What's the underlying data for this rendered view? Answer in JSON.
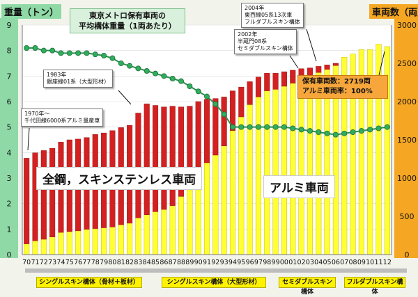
{
  "chart_data": {
    "type": "bar",
    "categories": [
      "70",
      "71",
      "72",
      "73",
      "74",
      "75",
      "76",
      "77",
      "78",
      "79",
      "80",
      "81",
      "82",
      "83",
      "84",
      "85",
      "86",
      "87",
      "88",
      "89",
      "90",
      "91",
      "92",
      "93",
      "94",
      "95",
      "96",
      "97",
      "98",
      "99",
      "00",
      "01",
      "02",
      "03",
      "04",
      "05",
      "06",
      "07",
      "08",
      "09",
      "10",
      "11",
      "12"
    ],
    "y_left": {
      "label": "重量（トン）",
      "ticks": [
        "0",
        "1",
        "2",
        "3",
        "4",
        "5",
        "6",
        "7",
        "8",
        "9"
      ],
      "range": [
        0,
        9
      ]
    },
    "y_right": {
      "label": "車両数（両）",
      "ticks": [
        "0",
        "500",
        "1000",
        "1500",
        "2000",
        "2500",
        "3000"
      ],
      "range": [
        0,
        3000
      ]
    },
    "series": [
      {
        "name": "アルミ車両",
        "axis": "right",
        "color": "#ffff33",
        "values": [
          140,
          180,
          200,
          230,
          290,
          300,
          310,
          330,
          340,
          350,
          360,
          390,
          410,
          480,
          520,
          560,
          590,
          640,
          760,
          860,
          1020,
          1200,
          1300,
          1420,
          1620,
          1800,
          1960,
          2060,
          2140,
          2160,
          2200,
          2240,
          2300,
          2340,
          2380,
          2420,
          2470,
          2580,
          2620,
          2680,
          2680,
          2750,
          2719
        ]
      },
      {
        "name": "全鋼，スキンステンレス車両",
        "axis": "right",
        "color": "#d32020",
        "values": [
          1120,
          1150,
          1160,
          1160,
          1180,
          1200,
          1200,
          1200,
          1230,
          1240,
          1260,
          1270,
          1280,
          1370,
          1450,
          1390,
          1340,
          1300,
          1170,
          1080,
          980,
          830,
          740,
          640,
          520,
          390,
          300,
          260,
          230,
          210,
          190,
          170,
          130,
          100,
          80,
          60,
          30,
          0,
          0,
          0,
          0,
          0,
          0
        ]
      },
      {
        "name": "平均構体重量（1両あたり）",
        "axis": "left",
        "color": "#2fae5a",
        "values": [
          8.1,
          8.1,
          8.0,
          8.0,
          7.9,
          7.9,
          7.9,
          7.9,
          7.85,
          7.8,
          7.7,
          7.5,
          7.4,
          7.3,
          7.2,
          7.1,
          7.0,
          6.9,
          6.8,
          6.6,
          6.4,
          6.2,
          5.9,
          5.5,
          5.0,
          5.0,
          5.0,
          5.0,
          5.0,
          5.0,
          5.0,
          4.95,
          4.9,
          4.85,
          4.8,
          4.75,
          4.7,
          4.75,
          4.8,
          4.85,
          4.9,
          4.95,
          5.0
        ]
      }
    ],
    "annotations": {
      "title_lines": [
        "東京メトロ保有車両の",
        "平均構体重量（1両あたり）"
      ],
      "note_1970": [
        "1970年～",
        "千代田線6000系アルミ量産車"
      ],
      "note_1983": [
        "1983年",
        "銀座線01系（大型形材）"
      ],
      "note_2002": [
        "2002年",
        "半蔵門08系",
        "セミダブルスキン構体"
      ],
      "note_2004": [
        "2004年",
        "東西線05系13次車",
        "フルダブルスキン構体"
      ],
      "steel_label": "全鋼，スキンステンレス車両",
      "alu_label": "アルミ車両",
      "summary_lines": [
        "保有車両数：2719両",
        "アルミ車両率：100%"
      ]
    },
    "phases": [
      {
        "label": "シングルスキン構体（骨材＋板材）"
      },
      {
        "label": "シングルスキン構体（大型形材）"
      },
      {
        "label": "セミダブルスキン構体"
      },
      {
        "label": "フルダブルスキン構体"
      }
    ]
  }
}
